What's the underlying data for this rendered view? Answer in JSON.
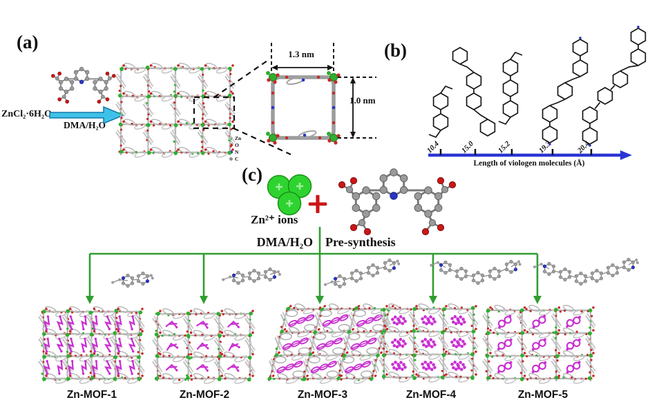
{
  "figure": {
    "panel_a": {
      "label": "(a)",
      "reactant": "ZnCl₂·6H₂O",
      "reaction_solvent": "DMA/H₂O",
      "pore_width": "1.3 nm",
      "pore_height": "1.0 nm",
      "atom_legend": [
        {
          "symbol": "Zn",
          "color": "#2fae2f"
        },
        {
          "symbol": "O",
          "color": "#c62828"
        },
        {
          "symbol": "N",
          "color": "#2935c4"
        },
        {
          "symbol": "C",
          "color": "#8f8f8f"
        }
      ]
    },
    "panel_b": {
      "label": "(b)",
      "axis_label": "Length of viologen molecules (Å)",
      "tick_values": [
        "10.4",
        "15.0",
        "15.2",
        "19.3",
        "20.4"
      ]
    },
    "panel_c": {
      "label": "(c)",
      "ions_label": "Zn²⁺ ions",
      "plus_sign": "+",
      "solvent": "DMA/H₂O",
      "process": "Pre-synthesis",
      "products": [
        {
          "name": "Zn-MOF-1"
        },
        {
          "name": "Zn-MOF-2"
        },
        {
          "name": "Zn-MOF-3"
        },
        {
          "name": "Zn-MOF-4"
        },
        {
          "name": "Zn-MOF-5"
        }
      ]
    },
    "colors": {
      "arrow_fill": "#3ec1e8",
      "arrow_stroke": "#1577a8",
      "scheme_green": "#2f9e2f",
      "axis_blue": "#2a35d4",
      "guest_magenta": "#c92fd2",
      "zinc_green": "#2fd32f",
      "plus_red": "#cb1616",
      "framework_gray": "#b3b3b3"
    }
  }
}
